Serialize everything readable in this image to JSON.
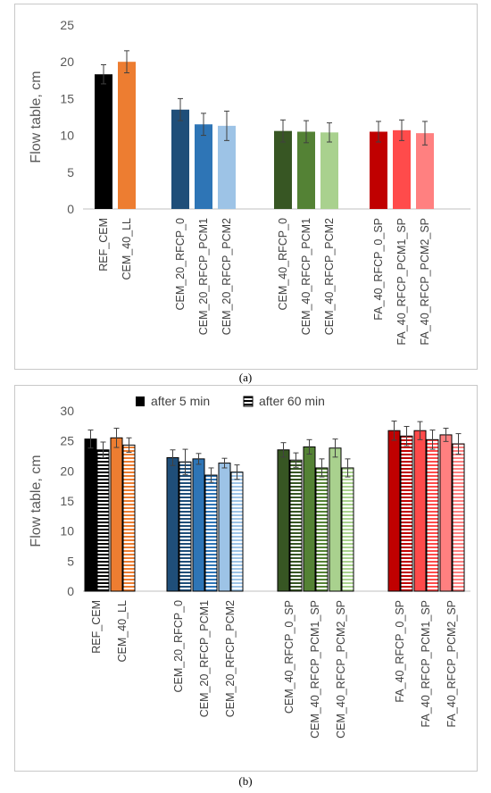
{
  "captions": {
    "a": "(a)",
    "b": "(b)"
  },
  "colors": {
    "black": "#000000",
    "orange": "#ed7d31",
    "navy": "#1f4e79",
    "blue": "#2e75b6",
    "lightblue": "#9dc3e6",
    "darkgreen": "#375623",
    "green": "#548235",
    "lightgreen": "#a9d18e",
    "darkred": "#c00000",
    "red": "#ff4b4b",
    "pink": "#ff8080"
  },
  "chart_data": [
    {
      "type": "bar",
      "panel": "a",
      "ylabel": "Flow table, cm",
      "ylim": [
        0,
        25
      ],
      "yticks": [
        0,
        5,
        10,
        15,
        20,
        25
      ],
      "groups": [
        {
          "categories": [
            "REF_CEM",
            "CEM_40_LL"
          ],
          "values": [
            18.3,
            20.0
          ],
          "errors": [
            1.3,
            1.5
          ],
          "colors": [
            "black",
            "orange"
          ]
        },
        {
          "categories": [
            "CEM_20_RFCP_0",
            "CEM_20_RFCP_PCM1",
            "CEM_20_RFCP_PCM2"
          ],
          "values": [
            13.5,
            11.5,
            11.3
          ],
          "errors": [
            1.5,
            1.5,
            2.0
          ],
          "colors": [
            "navy",
            "blue",
            "lightblue"
          ]
        },
        {
          "categories": [
            "CEM_40_RFCP_0",
            "CEM_40_RFCP_PCM1",
            "CEM_40_RFCP_PCM2"
          ],
          "values": [
            10.6,
            10.5,
            10.4
          ],
          "errors": [
            1.5,
            1.5,
            1.3
          ],
          "colors": [
            "darkgreen",
            "green",
            "lightgreen"
          ]
        },
        {
          "categories": [
            "FA_40_RFCP_0_SP",
            "FA_40_RFCP_PCM1_SP",
            "FA_40_RFCP_PCM2_SP"
          ],
          "values": [
            10.5,
            10.7,
            10.3
          ],
          "errors": [
            1.4,
            1.4,
            1.6
          ],
          "colors": [
            "darkred",
            "red",
            "pink"
          ]
        }
      ]
    },
    {
      "type": "bar",
      "panel": "b",
      "ylabel": "Flow table, cm",
      "ylim": [
        0,
        30
      ],
      "yticks": [
        0,
        5,
        10,
        15,
        20,
        25,
        30
      ],
      "legend": {
        "placement": "top",
        "entries": [
          "after 5 min",
          "after 60 min"
        ]
      },
      "series": [
        {
          "name": "after 5 min",
          "pattern": "solid"
        },
        {
          "name": "after 60 min",
          "pattern": "horizontal-stripes"
        }
      ],
      "groups": [
        {
          "categories": [
            "REF_CEM",
            "CEM_40_LL"
          ],
          "colors": [
            "black",
            "orange"
          ],
          "after_5": [
            25.3,
            25.5
          ],
          "after_5_err": [
            1.5,
            1.6
          ],
          "after_60": [
            23.5,
            24.3
          ],
          "after_60_err": [
            1.3,
            1.2
          ]
        },
        {
          "categories": [
            "CEM_20_RFCP_0",
            "CEM_20_RFCP_PCM1",
            "CEM_20_RFCP_PCM2"
          ],
          "colors": [
            "navy",
            "blue",
            "lightblue"
          ],
          "after_5": [
            22.2,
            22.0,
            21.3
          ],
          "after_5_err": [
            1.3,
            0.9,
            0.8
          ],
          "after_60": [
            21.5,
            19.3,
            19.8
          ],
          "after_60_err": [
            2.1,
            1.2,
            1.2
          ]
        },
        {
          "categories": [
            "CEM_40_RFCP_0_SP",
            "CEM_40_RFCP_PCM1_SP",
            "CEM_40_RFCP_PCM2_SP"
          ],
          "colors": [
            "darkgreen",
            "green",
            "lightgreen"
          ],
          "after_5": [
            23.5,
            24.0,
            23.8
          ],
          "after_5_err": [
            1.2,
            1.2,
            1.5
          ],
          "after_60": [
            21.8,
            20.5,
            20.5
          ],
          "after_60_err": [
            1.2,
            1.5,
            1.5
          ]
        },
        {
          "categories": [
            "FA_40_RFCP_0_SP",
            "FA_40_RFCP_PCM1_SP",
            "FA_40_RFCP_PCM2_SP"
          ],
          "colors": [
            "darkred",
            "red",
            "pink"
          ],
          "after_5": [
            26.7,
            26.7,
            26.0
          ],
          "after_5_err": [
            1.6,
            1.5,
            1.1
          ],
          "after_60": [
            25.8,
            25.2,
            24.5
          ],
          "after_60_err": [
            1.6,
            1.6,
            1.7
          ]
        }
      ]
    }
  ]
}
